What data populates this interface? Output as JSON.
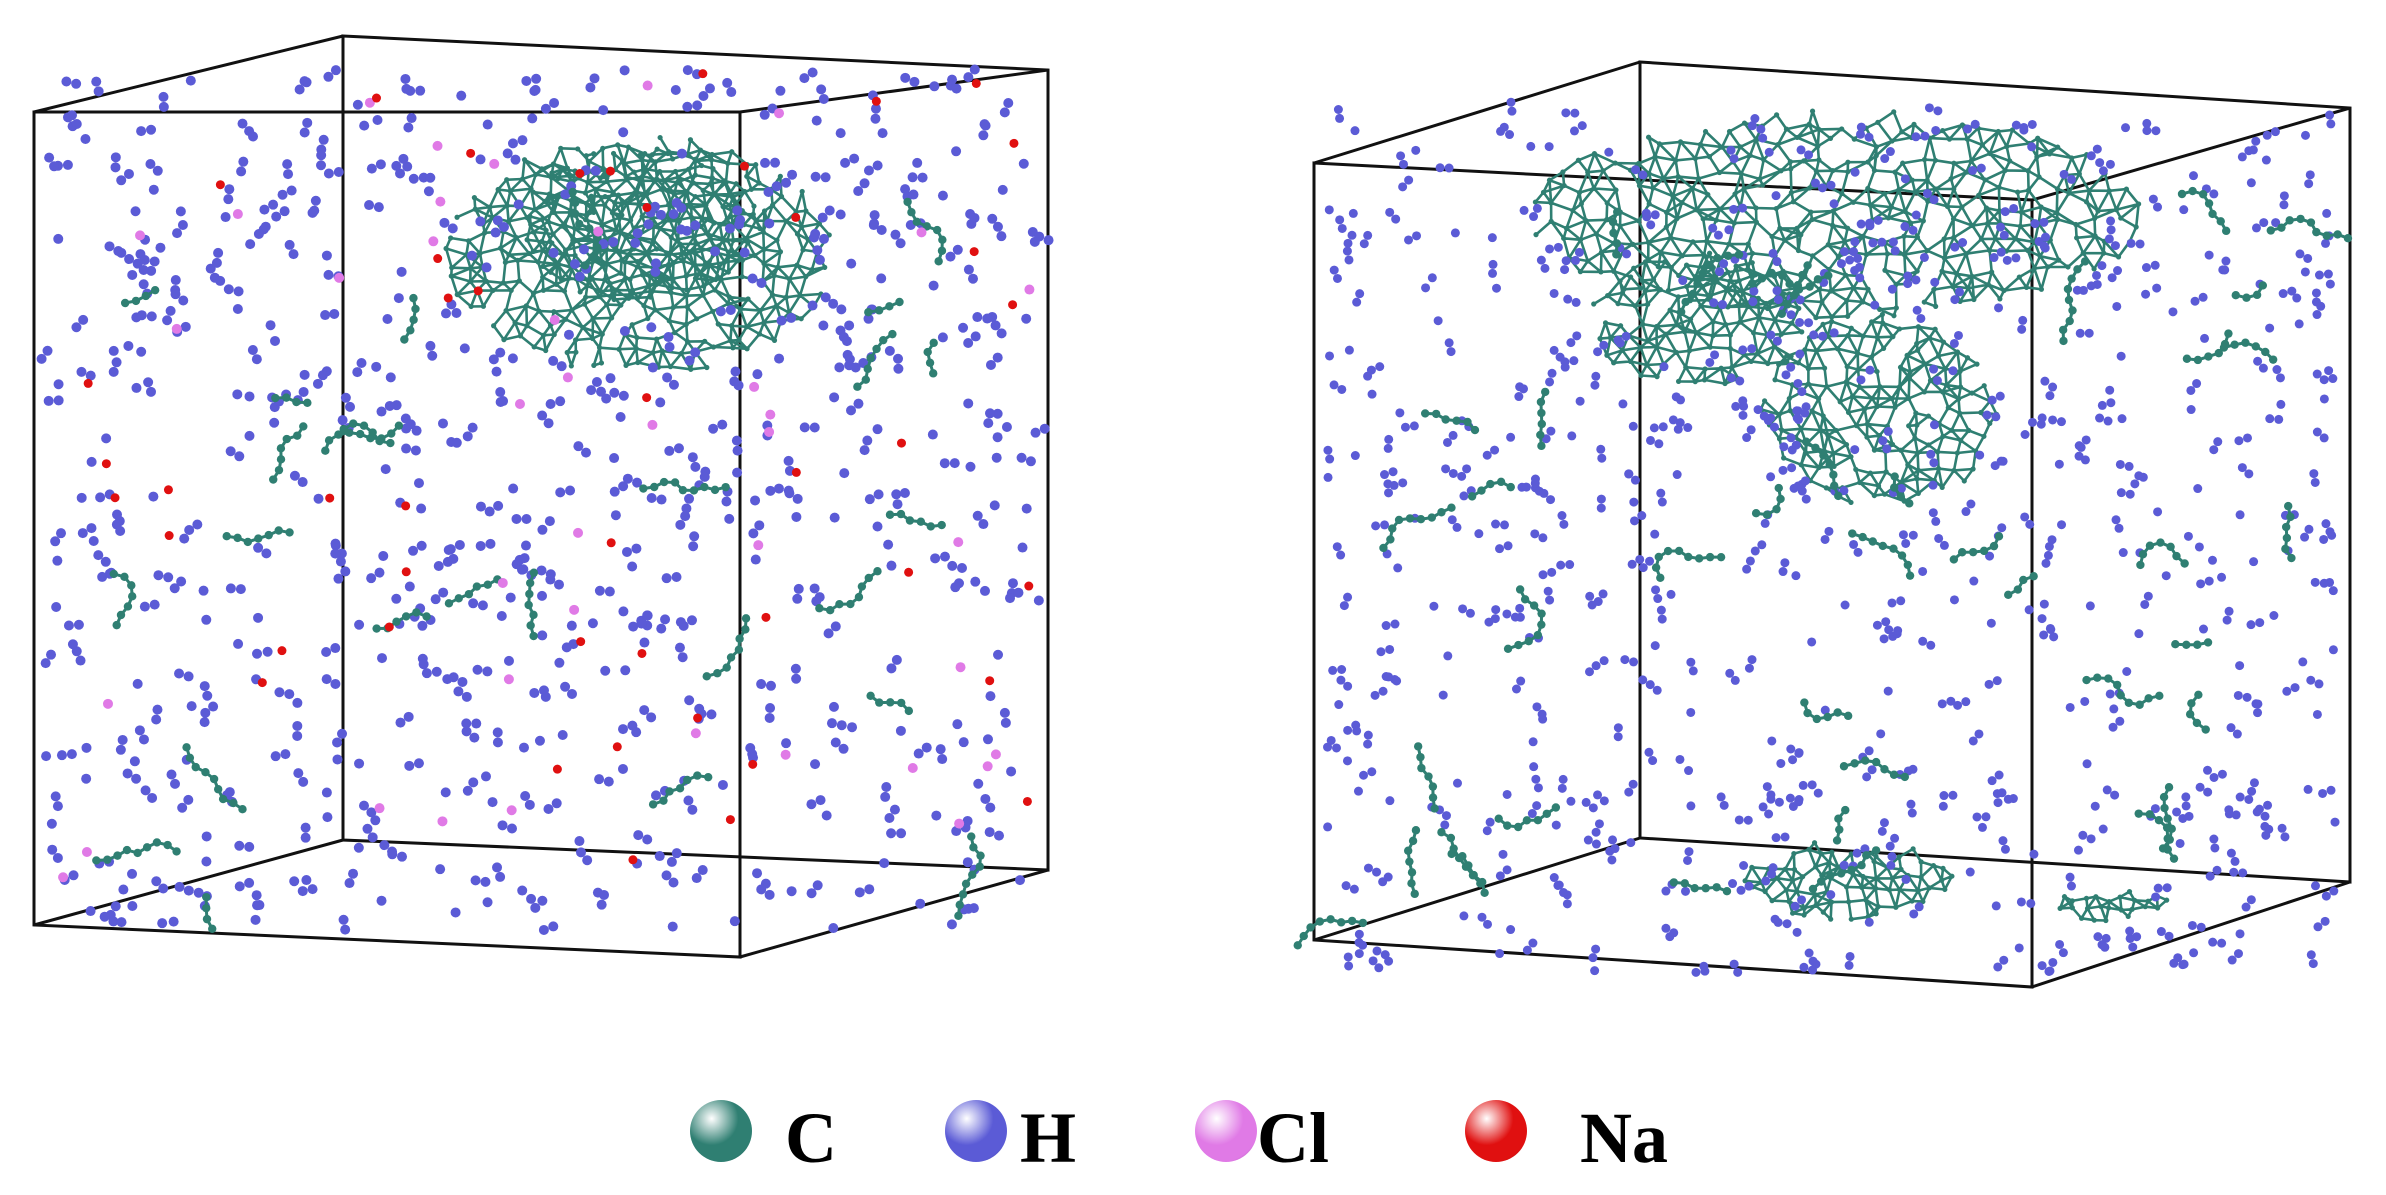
{
  "panels": [
    {
      "name": "left-simulation-box",
      "structure": "hollow-carbon-cage"
    },
    {
      "name": "right-simulation-box",
      "structure": "carbon-network"
    }
  ],
  "legend": [
    {
      "symbol": "C",
      "color": "#2f7f72"
    },
    {
      "symbol": "H",
      "color": "#5b5bd6"
    },
    {
      "symbol": "Cl",
      "color": "#e07ae6"
    },
    {
      "symbol": "Na",
      "color": "#e01010"
    }
  ],
  "colors": {
    "box_edge": "#111111",
    "carbon": "#2f7f72",
    "hydrogen": "#5b5bd6",
    "chlorine": "#e07ae6",
    "sodium": "#e01010"
  }
}
